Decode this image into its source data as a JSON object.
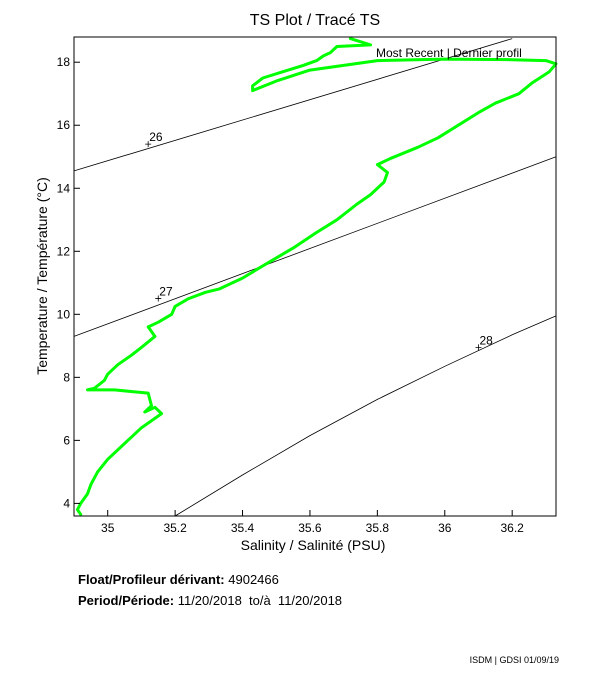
{
  "chart_data": {
    "type": "line",
    "title": "TS Plot / Tracé TS",
    "xlabel": "Salinity / Salinité (PSU)",
    "ylabel": "Temperature / Température (°C)",
    "xlim": [
      34.9,
      36.33
    ],
    "ylim": [
      3.6,
      18.8
    ],
    "xticks": [
      "35",
      "35.2",
      "35.4",
      "35.6",
      "35.8",
      "36",
      "36.2"
    ],
    "yticks": [
      "4",
      "6",
      "8",
      "10",
      "12",
      "14",
      "16",
      "18"
    ],
    "grid": false,
    "series": [
      {
        "name": "Most Recent | Dernier profil",
        "color": "#00ff00",
        "x": [
          35.72,
          35.78,
          35.68,
          35.66,
          35.64,
          35.62,
          35.58,
          35.52,
          35.46,
          35.43,
          35.43,
          35.5,
          35.6,
          35.8,
          36.0,
          36.2,
          36.3,
          36.33,
          36.31,
          36.26,
          36.22,
          36.15,
          36.1,
          36.04,
          35.98,
          35.92,
          35.84,
          35.8,
          35.83,
          35.82,
          35.78,
          35.74,
          35.68,
          35.62,
          35.55,
          35.47,
          35.4,
          35.33,
          35.29,
          35.24,
          35.2,
          35.19,
          35.15,
          35.12,
          35.14,
          35.1,
          35.07,
          35.03,
          35.0,
          34.99,
          34.96,
          34.94,
          35.02,
          35.12,
          35.13,
          35.11,
          35.14,
          35.16,
          35.1,
          35.05,
          35.0,
          34.97,
          34.95,
          34.94,
          34.92,
          34.91,
          34.92
        ],
        "y": [
          18.75,
          18.55,
          18.5,
          18.3,
          18.2,
          18.05,
          17.9,
          17.7,
          17.5,
          17.25,
          17.1,
          17.4,
          17.75,
          18.05,
          18.1,
          18.08,
          18.05,
          17.95,
          17.7,
          17.35,
          17.0,
          16.7,
          16.4,
          16.0,
          15.6,
          15.3,
          14.95,
          14.75,
          14.5,
          14.2,
          13.8,
          13.5,
          13.0,
          12.6,
          12.1,
          11.6,
          11.15,
          10.8,
          10.7,
          10.5,
          10.25,
          10.0,
          9.75,
          9.6,
          9.3,
          8.95,
          8.7,
          8.4,
          8.1,
          7.9,
          7.65,
          7.6,
          7.6,
          7.5,
          7.1,
          6.9,
          7.05,
          6.85,
          6.4,
          5.9,
          5.4,
          5.0,
          4.6,
          4.3,
          4.0,
          3.8,
          3.65
        ]
      }
    ],
    "isopycnals": [
      {
        "label": "26",
        "label_point": [
          35.12,
          15.4
        ],
        "x": [
          34.9,
          36.2
        ],
        "y": [
          14.55,
          18.75
        ]
      },
      {
        "label": "27",
        "label_point": [
          35.15,
          10.5
        ],
        "x": [
          34.9,
          36.33
        ],
        "y": [
          9.3,
          15.0
        ]
      },
      {
        "label": "28",
        "label_point": [
          36.1,
          8.95
        ],
        "x": [
          35.2,
          35.4,
          35.6,
          35.8,
          36.0,
          36.2,
          36.33
        ],
        "y": [
          3.6,
          4.9,
          6.15,
          7.3,
          8.35,
          9.35,
          9.95
        ]
      }
    ]
  },
  "info": {
    "float_label": "Float/Profileur dérivant:",
    "float_value": "4902466",
    "period_label": "Period/Période:",
    "period_value": "11/20/2018  to/à  11/20/2018"
  },
  "footer": "ISDM | GDSI 01/09/19"
}
